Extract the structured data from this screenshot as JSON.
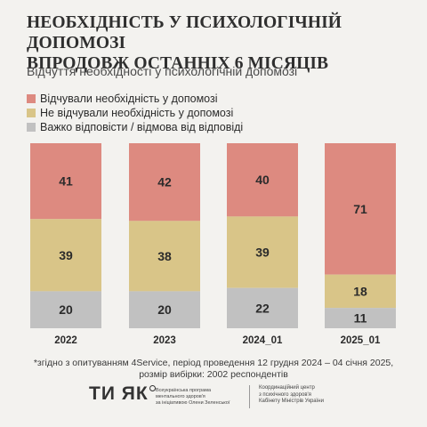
{
  "title": [
    "НЕОБХІДНІСТЬ У ПСИХОЛОГІЧНІЙ ДОПОМОЗІ",
    "ВПРОДОВЖ ОСТАННІХ 6 МІСЯЦІВ"
  ],
  "subtitle": "Відчуття необхідності у психологічній допомозі",
  "colors": {
    "felt": "#dd8a80",
    "not_felt": "#d9c588",
    "hard": "#c1c1c1",
    "background": "#f3f2ef"
  },
  "chart_data": {
    "type": "bar",
    "stacked": true,
    "categories": [
      "2022",
      "2023",
      "2024_01",
      "2025_01"
    ],
    "series": [
      {
        "name": "Відчували необхідність у допомозі",
        "values": [
          41,
          42,
          40,
          71
        ]
      },
      {
        "name": "Не відчували необхідність у допомозі",
        "values": [
          39,
          38,
          39,
          18
        ]
      },
      {
        "name": "Важко відповісти / відмова від відповіді",
        "values": [
          20,
          20,
          22,
          11
        ]
      }
    ],
    "ylim": [
      0,
      100
    ],
    "legend_position": "top-left",
    "grid": false,
    "data_labels": true
  },
  "footnote": [
    "*згідно з опитуванням 4Service, період проведення 12 грудня 2024 – 04 січня 2025,",
    "розмір вибірки: 2002 респондентів"
  ],
  "logo_text": "ТИ ЯК",
  "program_lines": [
    "Всеукраїнська програма",
    "ментального здоров'я",
    "за ініціативою Олени Зеленської"
  ],
  "coordinator_lines": [
    "Координаційний центр",
    "з психічного здоров'я",
    "Кабінету Міністрів України"
  ]
}
